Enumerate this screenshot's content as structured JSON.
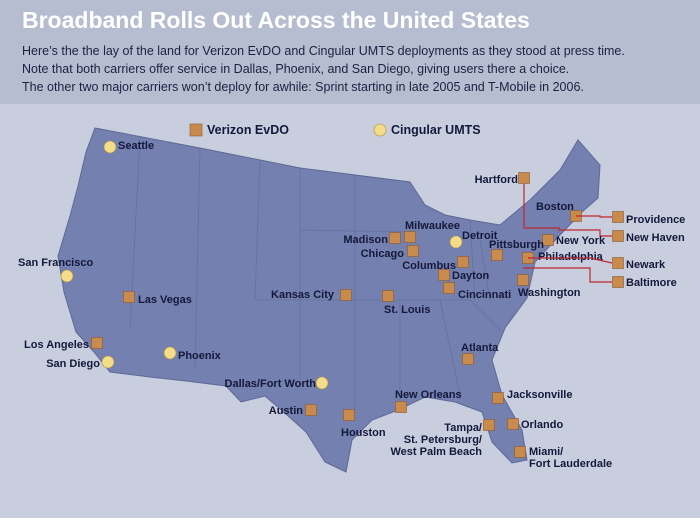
{
  "header": {
    "title": "Broadband Rolls Out Across the United States",
    "subtitle": [
      "Here’s the the lay of the land for Verizon EvDO and Cingular UMTS deployments as they stood at press time.",
      "Note that both carriers offer service in Dallas, Phoenix, and San Diego, giving users there a choice.",
      "The other two major carriers won’t deploy for awhile: Sprint starting in late 2005 and T-Mobile in 2006."
    ]
  },
  "legend": [
    {
      "name": "Verizon EvDO",
      "color": "#c98a4e",
      "cities": [
        "Hartford",
        "Boston",
        "Providence",
        "New Haven",
        "New York",
        "Philadelphia",
        "Pittsburgh",
        "Newark",
        "Baltimore",
        "Washington",
        "Milwaukee",
        "Madison",
        "Chicago",
        "Columbus",
        "Dayton",
        "Cincinnati",
        "Kansas City",
        "St. Louis",
        "Las Vegas",
        "Los Angeles",
        "Atlanta",
        "New Orleans",
        "Austin",
        "Houston",
        "Jacksonville",
        "Orlando",
        [
          "Tampa/",
          "St. Petersburg/",
          "West Palm Beach"
        ],
        [
          "Miami/",
          "Fort Lauderdale"
        ]
      ]
    },
    {
      "name": "Cingular UMTS",
      "color": "#f3dc8a",
      "cities": [
        "Seattle",
        "San Francisco",
        "San Diego",
        "Phoenix",
        "Dallas/Fort Worth",
        "Detroit"
      ]
    }
  ]
}
